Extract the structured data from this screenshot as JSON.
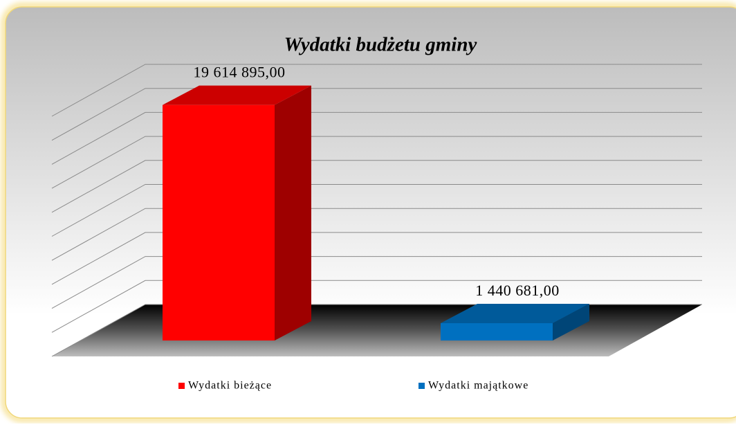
{
  "chart_data": {
    "type": "bar3d",
    "title": "Wydatki budżetu gminy",
    "categories": [
      null
    ],
    "series": [
      {
        "name": "Wydatki bieżące",
        "color": "#ff0000",
        "values": [
          19614895
        ],
        "value_labels": [
          "19 614 895,00"
        ]
      },
      {
        "name": "Wydatki majątkowe",
        "color": "#0070c0",
        "values": [
          1440681
        ],
        "value_labels": [
          "1 440 681,00"
        ]
      }
    ],
    "ylim": [
      0,
      20000000
    ],
    "yticks": [
      0,
      2000000,
      4000000,
      6000000,
      8000000,
      10000000,
      12000000,
      14000000,
      16000000,
      18000000,
      20000000
    ],
    "grid": true,
    "legend": "bottom"
  }
}
